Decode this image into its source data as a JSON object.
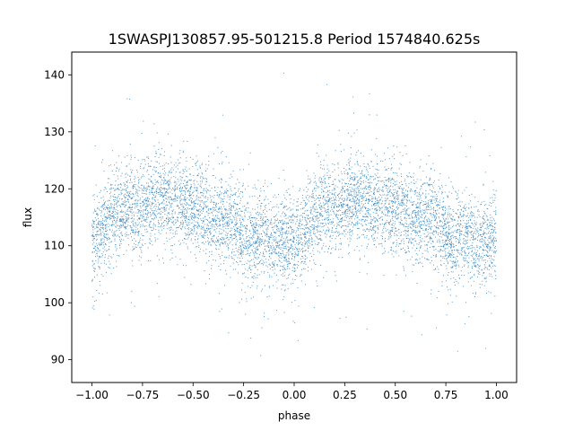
{
  "chart_data": {
    "type": "scatter",
    "title": "1SWASPJ130857.95-501215.8 Period 1574840.625s",
    "xlabel": "phase",
    "ylabel": "flux",
    "xlim": [
      -1.1,
      1.1
    ],
    "ylim": [
      86,
      144
    ],
    "x_ticks": [
      -1.0,
      -0.75,
      -0.5,
      -0.25,
      0.0,
      0.25,
      0.5,
      0.75,
      1.0
    ],
    "x_tick_labels": [
      "−1.00",
      "−0.75",
      "−0.50",
      "−0.25",
      "0.00",
      "0.25",
      "0.50",
      "0.75",
      "1.00"
    ],
    "y_ticks": [
      90,
      100,
      110,
      120,
      130,
      140
    ],
    "y_tick_labels": [
      "90",
      "100",
      "110",
      "120",
      "130",
      "140"
    ],
    "grid": false,
    "legend": "none",
    "marker_color": "#1f77b4",
    "phase_range": [
      -1.0,
      1.0
    ],
    "mean_curve": {
      "phase": [
        0.0,
        0.05,
        0.1,
        0.15,
        0.2,
        0.25,
        0.3,
        0.35,
        0.4,
        0.45,
        0.5,
        0.55,
        0.6,
        0.65,
        0.7,
        0.75,
        0.8,
        0.85,
        0.9,
        0.95,
        1.0
      ],
      "flux": [
        109.5,
        112.5,
        115,
        116,
        116.5,
        117,
        118.5,
        118,
        117.5,
        117,
        116.5,
        116,
        115,
        114.5,
        114,
        112,
        111,
        111.5,
        110.5,
        110.5,
        111.5
      ]
    },
    "typical_scatter": 4,
    "flux_extremes": [
      88,
      141
    ]
  }
}
